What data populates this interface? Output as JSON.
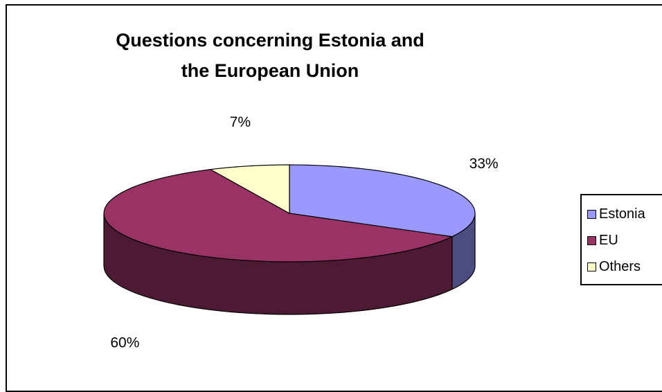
{
  "chart_data": {
    "type": "pie",
    "title_lines": [
      "Questions concerning Estonia and",
      "the European Union"
    ],
    "categories": [
      "Estonia",
      "EU",
      "Others"
    ],
    "values": [
      33,
      60,
      7
    ],
    "data_labels": [
      "33%",
      "60%",
      "7%"
    ],
    "colors": [
      "#9999ff",
      "#993366",
      "#ffffcc"
    ],
    "side_colors": [
      "#4c4c80",
      "#4d1a33",
      "#808066"
    ],
    "legend_placement": "right",
    "style": "3d"
  }
}
